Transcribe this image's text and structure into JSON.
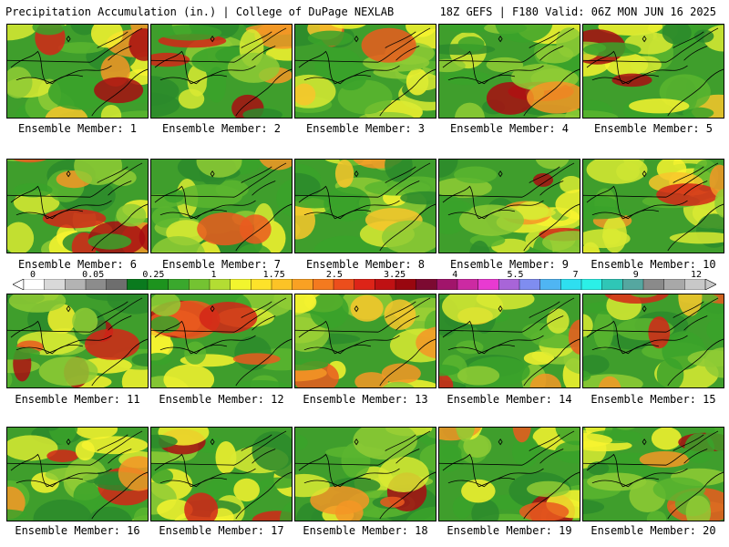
{
  "header": {
    "left": "Precipitation Accumulation (in.) | College of DuPage NEXLAB",
    "right": "18Z GEFS | F180 Valid: 06Z MON JUN 16 2025"
  },
  "colorbar": {
    "labels": [
      "0",
      "0.05",
      "0.25",
      "1",
      "1.75",
      "2.5",
      "3.25",
      "4",
      "5.5",
      "7",
      "9",
      "12"
    ],
    "colors": [
      "#ffffff",
      "#d9d9d9",
      "#b3b3b3",
      "#8c8c8c",
      "#6e6e6e",
      "#0a7a1e",
      "#1d931e",
      "#3aa82d",
      "#74c332",
      "#b3dd33",
      "#f2f52e",
      "#fde22a",
      "#fcc326",
      "#f9a123",
      "#f47a1f",
      "#ec4e1c",
      "#dd2418",
      "#bf1113",
      "#99070f",
      "#7c0a31",
      "#a1156b",
      "#cc2aa2",
      "#e83ad1",
      "#a865d8",
      "#7f8df0",
      "#4fb5f3",
      "#2edff0",
      "#2bf0e7",
      "#2fc6b6",
      "#55a7a0",
      "#8a8a8a",
      "#a8a8a8",
      "#c8c8c8"
    ]
  },
  "members": [
    {
      "label": "Ensemble Member: 1"
    },
    {
      "label": "Ensemble Member: 2"
    },
    {
      "label": "Ensemble Member: 3"
    },
    {
      "label": "Ensemble Member: 4"
    },
    {
      "label": "Ensemble Member: 5"
    },
    {
      "label": "Ensemble Member: 6"
    },
    {
      "label": "Ensemble Member: 7"
    },
    {
      "label": "Ensemble Member: 8"
    },
    {
      "label": "Ensemble Member: 9"
    },
    {
      "label": "Ensemble Member: 10"
    },
    {
      "label": "Ensemble Member: 11"
    },
    {
      "label": "Ensemble Member: 12"
    },
    {
      "label": "Ensemble Member: 13"
    },
    {
      "label": "Ensemble Member: 14"
    },
    {
      "label": "Ensemble Member: 15"
    },
    {
      "label": "Ensemble Member: 16"
    },
    {
      "label": "Ensemble Member: 17"
    },
    {
      "label": "Ensemble Member: 18"
    },
    {
      "label": "Ensemble Member: 19"
    },
    {
      "label": "Ensemble Member: 20"
    }
  ]
}
